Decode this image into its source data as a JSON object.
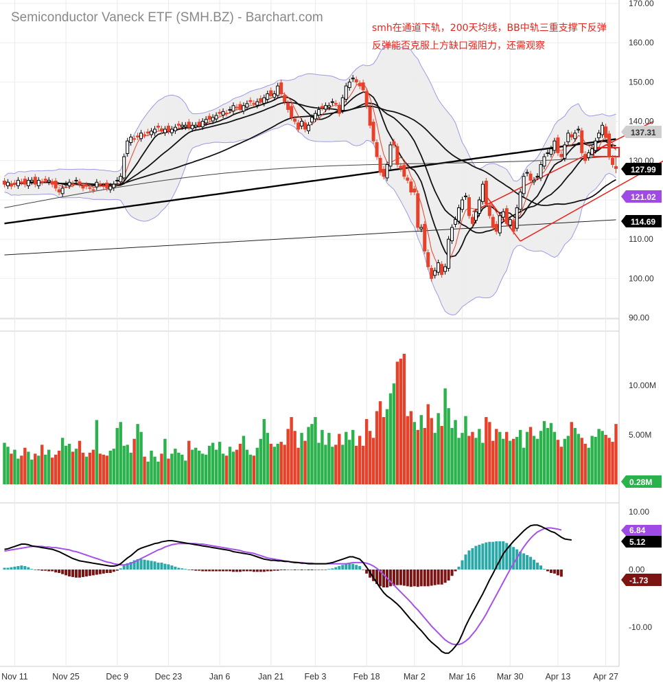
{
  "chart_title": "Semiconductor Vaneck ETF (SMH.BZ) - Barchart.com",
  "annotation": {
    "line1": "smh在通道下轨，200天均线，BB中轨三重支撑下反弹",
    "line2": "反弹能否克服上方缺口强阻力，还需观察"
  },
  "colors": {
    "up": "#2bb24c",
    "down": "#e8412a",
    "bb_line": "#9a9ae6",
    "bb_fill": "#ececec",
    "macd_line": "#000000",
    "signal_line": "#a550e8",
    "hist_pos": "#2aa7a7",
    "hist_neg": "#7d1414",
    "annotation": "#e8241c"
  },
  "chart_data": [
    {
      "type": "candlestick",
      "panel": "price",
      "x_labels": [
        "Nov 11",
        "Nov 25",
        "Dec 9",
        "Dec 23",
        "Jan 6",
        "Jan 21",
        "Feb 3",
        "Feb 18",
        "Mar 2",
        "Mar 16",
        "Mar 30",
        "Apr 13",
        "Apr 27"
      ],
      "x_label_index": [
        3,
        18,
        33,
        48,
        63,
        78,
        91,
        106,
        120,
        134,
        148,
        162,
        176
      ],
      "ylim": [
        86,
        172
      ],
      "y_ticks": [
        "170.00",
        "160.00",
        "150.00",
        "140.00",
        "130.00",
        "120.00",
        "110.00",
        "100.00",
        "90.00"
      ],
      "closes": [
        124,
        124.5,
        123.5,
        124,
        125,
        124.5,
        124,
        125,
        125,
        124,
        125,
        124.5,
        125,
        125,
        124,
        123,
        122,
        123,
        124,
        124.5,
        124,
        125,
        124,
        123,
        123.5,
        123,
        122.5,
        124.5,
        124,
        123.5,
        123,
        123.5,
        124,
        125,
        126,
        131,
        135,
        136,
        135.5,
        136,
        137,
        136.5,
        137,
        137.5,
        138,
        138.5,
        137.5,
        138,
        137.5,
        138,
        138.5,
        139,
        139,
        139,
        138.5,
        139,
        139,
        139,
        140,
        140.5,
        140.5,
        141,
        141.5,
        142,
        142.5,
        142,
        143,
        144,
        143.5,
        143,
        144,
        144.5,
        145,
        144.5,
        145,
        145,
        146,
        147,
        146.5,
        147,
        149,
        147,
        145,
        143,
        141,
        140,
        138,
        140,
        138,
        139,
        141,
        142,
        143,
        143.5,
        144,
        144,
        145,
        144.5,
        142,
        146,
        149,
        150,
        151,
        150,
        149,
        148,
        144,
        139,
        135,
        131,
        127,
        126,
        129,
        134,
        134,
        129,
        128,
        126,
        125,
        122,
        122,
        113,
        113,
        107,
        103,
        100,
        102,
        104,
        101,
        103,
        110,
        113,
        115,
        118,
        120,
        121,
        116,
        114,
        117,
        120,
        124,
        119,
        116,
        113,
        112,
        116,
        117,
        114,
        115,
        112,
        118,
        122,
        126,
        127,
        125,
        125,
        126,
        129,
        131,
        132,
        133,
        135,
        132,
        131,
        134,
        137,
        136,
        137,
        138,
        132,
        130,
        132,
        133,
        135,
        137,
        139,
        136,
        131,
        129,
        128
      ],
      "last_candle": {
        "open": 128.5,
        "high": 131.0,
        "low": 126.8,
        "close": 127.99
      },
      "volumes_M": [
        4.2,
        3.8,
        3.1,
        3.5,
        2.6,
        2.9,
        3.7,
        3.3,
        2.5,
        3.1,
        2.9,
        4.0,
        3.0,
        3.5,
        2.7,
        3.0,
        3.4,
        4.7,
        3.9,
        4.1,
        3.3,
        3.6,
        4.4,
        3.2,
        2.8,
        3.2,
        3.5,
        6.5,
        3.1,
        3.0,
        2.9,
        3.4,
        3.6,
        5.7,
        6.3,
        3.9,
        4.0,
        3.2,
        4.6,
        6.1,
        5.3,
        2.8,
        2.3,
        3.4,
        2.8,
        2.3,
        3.1,
        4.6,
        2.6,
        3.1,
        3.6,
        3.2,
        3.0,
        2.4,
        4.4,
        3.5,
        3.7,
        3.4,
        3.1,
        3.0,
        3.9,
        4.2,
        3.5,
        4.3,
        3.1,
        2.9,
        3.8,
        3.3,
        3.5,
        4.1,
        4.9,
        3.5,
        3.0,
        2.9,
        3.7,
        4.6,
        6.6,
        5.2,
        4.1,
        3.8,
        4.1,
        4.3,
        4.0,
        5.6,
        6.8,
        5.4,
        3.7,
        5.2,
        4.4,
        5.8,
        6.1,
        6.8,
        4.2,
        5.5,
        4.0,
        5.2,
        3.8,
        4.0,
        5.1,
        4.0,
        5.3,
        4.5,
        5.5,
        3.9,
        4.9,
        3.9,
        6.6,
        5.4,
        4.7,
        7.4,
        8.4,
        6.8,
        7.6,
        9.2,
        10.2,
        12.4,
        12.7,
        13.2,
        6.9,
        7.4,
        6.3,
        5.5,
        7.0,
        5.7,
        8.1,
        6.7,
        5.2,
        7.2,
        5.9,
        9.7,
        7.7,
        5.7,
        6.5,
        4.7,
        5.2,
        6.9,
        4.9,
        5.3,
        4.7,
        5.6,
        4.2,
        6.8,
        6.3,
        4.4,
        5.6,
        5.3,
        4.6,
        5.3,
        4.4,
        4.6,
        4.8,
        5.5,
        3.7,
        5.3,
        5.8,
        4.9,
        4.6,
        5.4,
        6.4,
        5.7,
        6.2,
        5.3,
        4.5,
        3.8,
        4.6,
        4.9,
        6.3,
        5.7,
        5.1,
        4.7,
        4.1,
        3.7,
        4.9,
        4.8,
        5.6,
        5.4,
        5.0,
        4.7,
        4.3,
        6.1,
        5.5,
        0.28
      ]
    },
    {
      "type": "line",
      "panel": "macd",
      "ylim": [
        -16,
        12
      ],
      "y_ticks": [
        "10.00",
        "0.00",
        "-10.00"
      ],
      "series": [
        {
          "role": "macd",
          "values": [
            3.5,
            3.6,
            3.8,
            4.0,
            4.2,
            4.4,
            4.4,
            4.3,
            4.1,
            4.0,
            3.9,
            3.8,
            3.7,
            3.6,
            3.5,
            3.3,
            3.1,
            2.8,
            2.5,
            2.2,
            1.9,
            1.7,
            1.5,
            1.4,
            1.3,
            1.2,
            1.1,
            1.0,
            0.9,
            0.8,
            0.7,
            0.6,
            0.6,
            0.7,
            1.0,
            1.5,
            2.0,
            2.4,
            2.9,
            3.4,
            3.7,
            3.9,
            4.1,
            4.3,
            4.5,
            4.6,
            4.8,
            4.9,
            5.0,
            5.0,
            4.9,
            4.8,
            4.7,
            4.6,
            4.5,
            4.4,
            4.3,
            4.2,
            4.1,
            4.0,
            3.9,
            3.8,
            3.7,
            3.6,
            3.5,
            3.4,
            3.3,
            3.1,
            3.0,
            2.9,
            2.8,
            2.7,
            2.6,
            2.4,
            2.2,
            2.0,
            1.8,
            1.7,
            1.6,
            1.6,
            1.5,
            1.5,
            1.4,
            1.4,
            1.3,
            1.2,
            1.2,
            1.1,
            1.1,
            1.0,
            1.0,
            1.0,
            1.0,
            1.0,
            1.0,
            1.1,
            1.2,
            1.4,
            1.6,
            1.8,
            2.0,
            2.2,
            2.2,
            2.0,
            1.8,
            1.2,
            0.4,
            -0.5,
            -1.4,
            -2.3,
            -3.2,
            -4.0,
            -4.6,
            -5.0,
            -5.5,
            -6.0,
            -6.6,
            -7.3,
            -8.0,
            -8.7,
            -9.3,
            -10.0,
            -10.6,
            -11.3,
            -12.0,
            -12.6,
            -13.1,
            -13.6,
            -14.2,
            -14.5,
            -14.5,
            -14.0,
            -13.3,
            -12.5,
            -11.2,
            -9.8,
            -8.6,
            -7.5,
            -6.4,
            -5.3,
            -4.2,
            -3.0,
            -1.8,
            -0.7,
            0.5,
            1.6,
            2.7,
            3.5,
            4.2,
            4.9,
            5.5,
            6.1,
            6.7,
            7.2,
            7.6,
            7.7,
            7.7,
            7.5,
            7.2,
            6.9,
            6.6,
            6.4,
            6.0,
            5.6,
            5.3,
            5.2,
            5.12
          ]
        },
        {
          "role": "signal",
          "values": [
            3.2,
            3.3,
            3.4,
            3.5,
            3.6,
            3.7,
            3.8,
            3.9,
            4.0,
            4.0,
            4.0,
            4.0,
            3.9,
            3.9,
            3.8,
            3.8,
            3.7,
            3.6,
            3.5,
            3.4,
            3.2,
            3.1,
            2.9,
            2.7,
            2.5,
            2.3,
            2.1,
            1.9,
            1.7,
            1.5,
            1.3,
            1.2,
            1.0,
            0.9,
            0.8,
            0.8,
            0.9,
            1.1,
            1.3,
            1.6,
            1.9,
            2.2,
            2.5,
            2.8,
            3.1,
            3.4,
            3.6,
            3.9,
            4.1,
            4.3,
            4.4,
            4.5,
            4.5,
            4.5,
            4.5,
            4.5,
            4.5,
            4.4,
            4.4,
            4.3,
            4.2,
            4.1,
            4.0,
            3.9,
            3.8,
            3.7,
            3.6,
            3.5,
            3.4,
            3.3,
            3.1,
            3.0,
            2.9,
            2.8,
            2.6,
            2.4,
            2.2,
            2.0,
            1.9,
            1.8,
            1.7,
            1.6,
            1.5,
            1.4,
            1.3,
            1.3,
            1.2,
            1.2,
            1.1,
            1.1,
            1.1,
            1.0,
            1.0,
            1.0,
            1.0,
            1.0,
            1.0,
            1.0,
            1.0,
            1.0,
            1.0,
            1.1,
            1.2,
            1.2,
            1.2,
            1.2,
            1.1,
            0.9,
            0.6,
            0.2,
            -0.3,
            -0.9,
            -1.5,
            -2.1,
            -2.7,
            -3.3,
            -3.9,
            -4.5,
            -5.1,
            -5.7,
            -6.4,
            -7.0,
            -7.7,
            -8.4,
            -9.1,
            -9.8,
            -10.4,
            -11.0,
            -11.6,
            -12.2,
            -12.6,
            -12.9,
            -13.0,
            -13.0,
            -12.8,
            -12.4,
            -11.9,
            -11.2,
            -10.5,
            -9.6,
            -8.7,
            -7.7,
            -6.6,
            -5.5,
            -4.4,
            -3.3,
            -2.2,
            -1.1,
            0.0,
            1.0,
            2.0,
            3.0,
            3.9,
            4.7,
            5.4,
            6.0,
            6.5,
            6.8,
            7.1,
            7.2,
            7.2,
            7.1,
            7.0,
            6.84
          ]
        }
      ]
    }
  ],
  "badges": {
    "price_high": "137.31",
    "price_last": "127.99",
    "price_mid": "121.02",
    "price_ma": "114.69",
    "volume_last": "0.28M",
    "macd_signal": "6.84",
    "macd_line": "5.12",
    "macd_hist": "-1.73"
  },
  "volume_ticks": [
    "10.00M",
    "5.00M"
  ]
}
